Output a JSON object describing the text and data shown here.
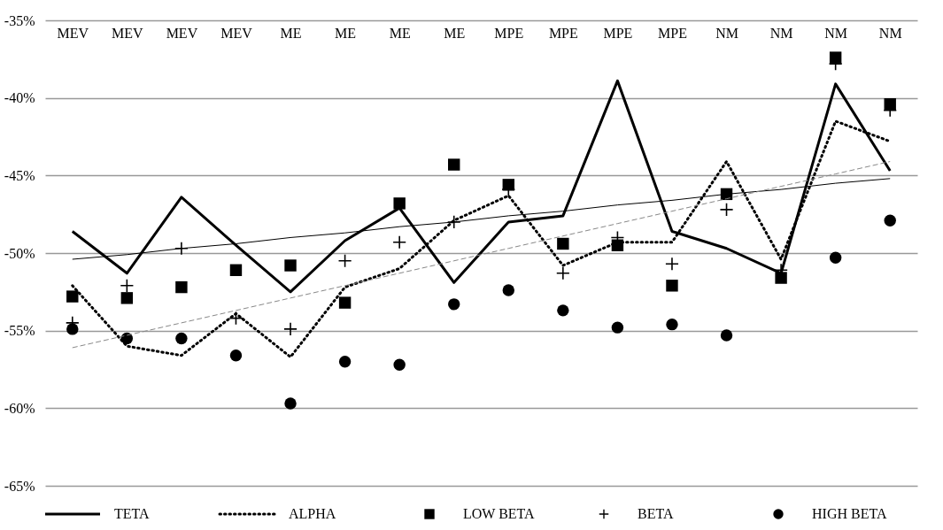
{
  "chart_data": {
    "type": "line",
    "categories": [
      "MEV",
      "MEV",
      "MEV",
      "MEV",
      "ME",
      "ME",
      "ME",
      "ME",
      "MPE",
      "MPE",
      "MPE",
      "MPE",
      "NM",
      "NM",
      "NM",
      "NM"
    ],
    "ylim": [
      -65,
      -35
    ],
    "yticks": [
      {
        "value": -35,
        "label": "-35%"
      },
      {
        "value": -40,
        "label": "-40%"
      },
      {
        "value": -45,
        "label": "-45%"
      },
      {
        "value": -50,
        "label": "-50%"
      },
      {
        "value": -55,
        "label": "-55%"
      },
      {
        "value": -60,
        "label": "-60%"
      },
      {
        "value": -65,
        "label": "-65%"
      }
    ],
    "grid": "y",
    "legend": "bottom",
    "series": [
      {
        "name": "TETA",
        "color": "#000000",
        "line_style": "solid",
        "marker": "none",
        "values": [
          -48.6,
          -51.3,
          -46.4,
          -49.5,
          -52.5,
          -49.2,
          -47.1,
          -51.9,
          -48.0,
          -47.6,
          -38.9,
          -48.6,
          -49.7,
          -51.3,
          -39.1,
          -44.7
        ]
      },
      {
        "name": "ALPHA",
        "color": "#000000",
        "line_style": "dotted",
        "marker": "none",
        "values": [
          -52.1,
          -56.0,
          -56.6,
          -53.9,
          -56.7,
          -52.2,
          -51.0,
          -47.9,
          -46.3,
          -50.8,
          -49.3,
          -49.3,
          -44.1,
          -50.4,
          -41.5,
          -42.8
        ]
      },
      {
        "name": "LOW BETA",
        "type": "scatter",
        "color": "#000000",
        "marker": "square",
        "values": [
          -52.8,
          -52.9,
          -52.2,
          -51.1,
          -50.8,
          -53.2,
          -46.8,
          -44.3,
          -45.6,
          -49.4,
          -49.5,
          -52.1,
          -46.2,
          -51.6,
          -37.4,
          -40.4
        ]
      },
      {
        "name": "BETA",
        "type": "scatter",
        "color": "#000000",
        "marker": "cross",
        "values": [
          -54.5,
          -52.1,
          -49.7,
          -54.2,
          -54.9,
          -50.5,
          -49.3,
          -48.0,
          -45.9,
          -51.3,
          -49.0,
          -50.7,
          -47.2,
          -51.1,
          -37.8,
          -40.8
        ]
      },
      {
        "name": "HIGH BETA",
        "type": "scatter",
        "color": "#000000",
        "marker": "circle",
        "values": [
          -54.9,
          -55.5,
          -55.5,
          -56.6,
          -59.7,
          -57.0,
          -57.2,
          -53.3,
          -52.4,
          -53.7,
          -54.8,
          -54.6,
          -55.3,
          null,
          -50.3,
          -47.9
        ]
      },
      {
        "color": "#000000",
        "line_style": "solid",
        "marker": "none",
        "values": [
          -50.4,
          -50.1,
          -49.7,
          -49.4,
          -49.0,
          -48.7,
          -48.3,
          -48.0,
          -47.6,
          -47.3,
          -46.9,
          -46.6,
          -46.2,
          -45.9,
          -45.5,
          -45.2
        ]
      },
      {
        "color": "#888888",
        "line_style": "dashed",
        "marker": "none",
        "values": [
          -56.1,
          -55.3,
          -54.5,
          -53.7,
          -52.9,
          -52.1,
          -51.3,
          -50.5,
          -49.7,
          -48.9,
          -48.1,
          -47.3,
          -46.5,
          -45.7,
          -44.9,
          -44.1
        ]
      }
    ]
  }
}
